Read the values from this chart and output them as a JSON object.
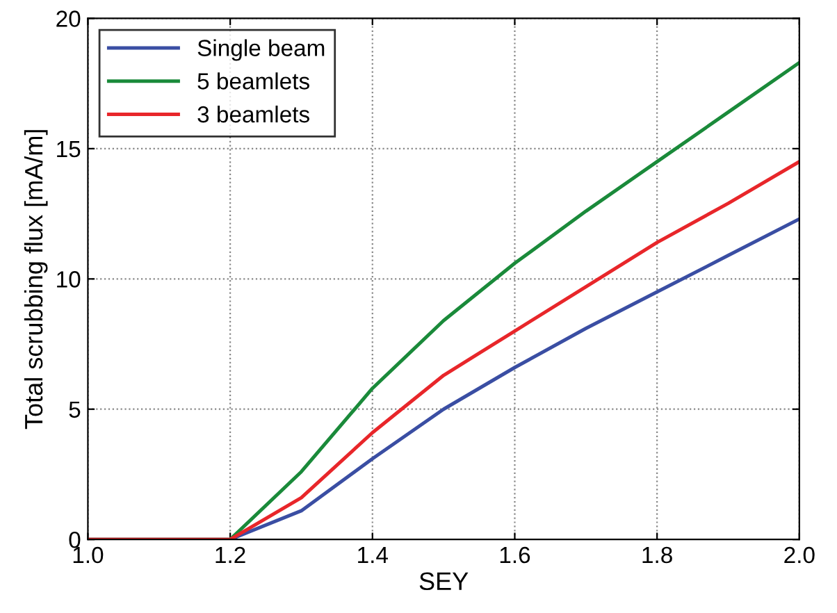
{
  "chart_data": {
    "type": "line",
    "xlabel": "SEY",
    "ylabel": "Total scrubbing flux [mA/m]",
    "x": [
      1.0,
      1.1,
      1.2,
      1.3,
      1.4,
      1.5,
      1.6,
      1.7,
      1.8,
      1.9,
      2.0
    ],
    "series": [
      {
        "name": "Single beam",
        "color": "#3a4ea3",
        "values": [
          0,
          0,
          0,
          1.1,
          3.1,
          5.0,
          6.6,
          8.1,
          9.5,
          10.9,
          12.3
        ]
      },
      {
        "name": "5 beamlets",
        "color": "#1a8a3a",
        "values": [
          0,
          0,
          0,
          2.6,
          5.8,
          8.4,
          10.6,
          12.6,
          14.5,
          16.4,
          18.3
        ]
      },
      {
        "name": "3 beamlets",
        "color": "#e8262a",
        "values": [
          0,
          0,
          0,
          1.6,
          4.1,
          6.3,
          8.0,
          9.7,
          11.4,
          12.9,
          14.5
        ]
      }
    ],
    "xlim": [
      1.0,
      2.0
    ],
    "ylim": [
      0,
      20
    ],
    "xticks": [
      {
        "value": 1.0,
        "label": "1.0"
      },
      1.2,
      1.4,
      1.6,
      1.8,
      {
        "value": 2.0,
        "label": "2.0"
      }
    ],
    "yticks": [
      0,
      5,
      10,
      15,
      20
    ],
    "grid": true,
    "legend": "top left",
    "line_style": "solid",
    "marker": "none"
  }
}
